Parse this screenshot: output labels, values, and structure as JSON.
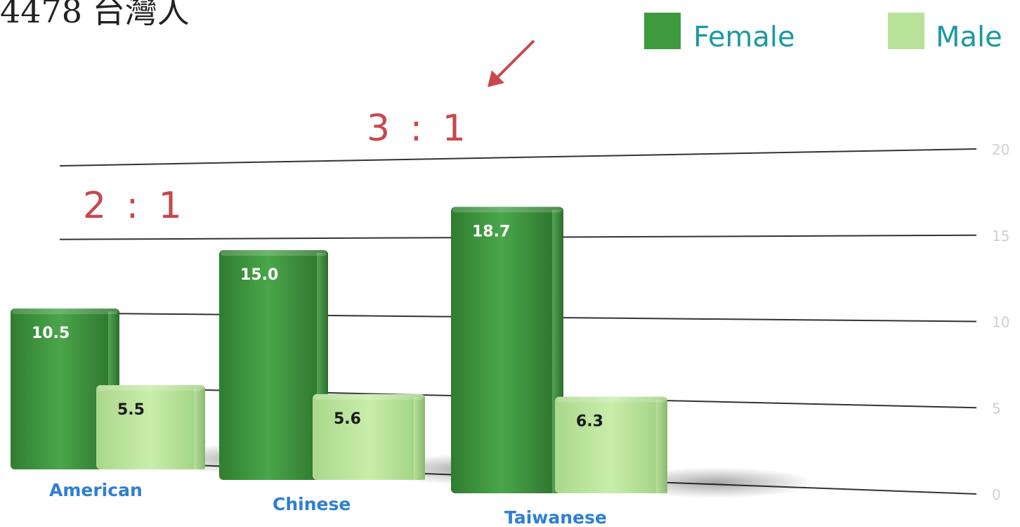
{
  "header": {
    "title": "4478 台灣人"
  },
  "chart_data": {
    "type": "bar",
    "categories": [
      "American",
      "Chinese",
      "Taiwanese"
    ],
    "series": [
      {
        "name": "Female",
        "values": [
          10.5,
          15.0,
          18.7
        ],
        "color": "#3f9a3f"
      },
      {
        "name": "Male",
        "values": [
          5.5,
          5.6,
          6.3
        ],
        "color": "#b9e29a"
      }
    ],
    "value_labels": {
      "Female": [
        "10.5",
        "15.0",
        "18.7"
      ],
      "Male": [
        "5.5",
        "5.6",
        "6.3"
      ]
    },
    "y_ticks": [
      "0",
      "5",
      "10",
      "15",
      "20"
    ],
    "ylim": [
      0,
      20
    ],
    "grid": true,
    "legend": "top-right",
    "annotations": [
      "2 : 1",
      "3 : 1"
    ],
    "annotation_color": "#c9484c",
    "category_label_color": "#2f7fd3"
  }
}
